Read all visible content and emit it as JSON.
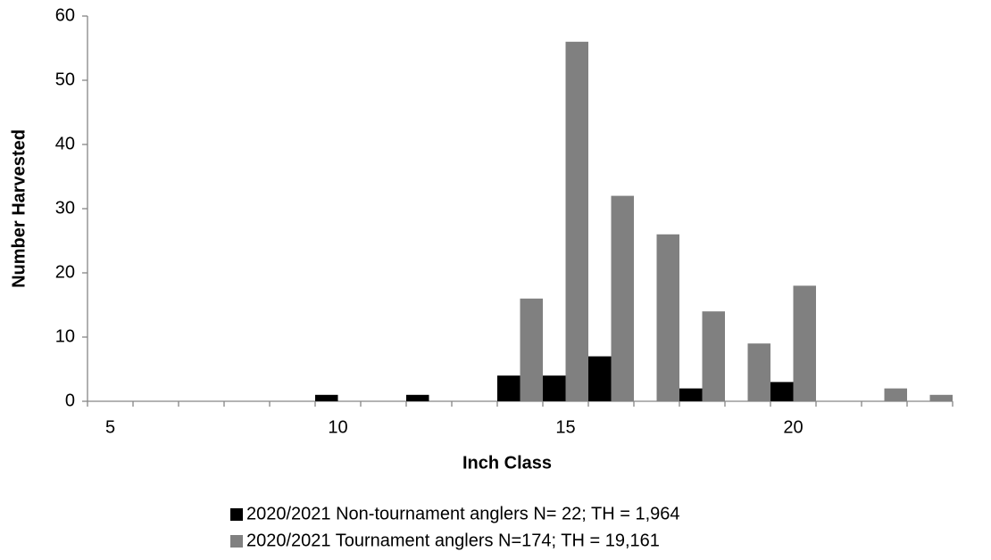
{
  "chart_data": {
    "type": "bar",
    "x_label": "Inch Class",
    "y_label": "Number Harvested",
    "categories": [
      "5",
      null,
      null,
      null,
      null,
      "10",
      null,
      null,
      null,
      null,
      "15",
      null,
      null,
      null,
      null,
      "20",
      null,
      null,
      null
    ],
    "series": [
      {
        "name": "2020/2021 Non-tournament anglers N= 22; TH = 1,964",
        "color": "#000000",
        "values": [
          0,
          0,
          0,
          0,
          0,
          1,
          0,
          1,
          0,
          4,
          4,
          7,
          0,
          2,
          0,
          3,
          0,
          0,
          0
        ]
      },
      {
        "name": "2020/2021 Tournament anglers N=174; TH = 19,161",
        "color": "#808080",
        "values": [
          0,
          0,
          0,
          0,
          0,
          0,
          0,
          0,
          0,
          16,
          56,
          32,
          26,
          14,
          9,
          18,
          0,
          2,
          1
        ]
      }
    ],
    "ylim": [
      0,
      60
    ],
    "yticks": [
      0,
      10,
      20,
      30,
      40,
      50,
      60
    ],
    "grid": false,
    "legend": "bottom"
  }
}
